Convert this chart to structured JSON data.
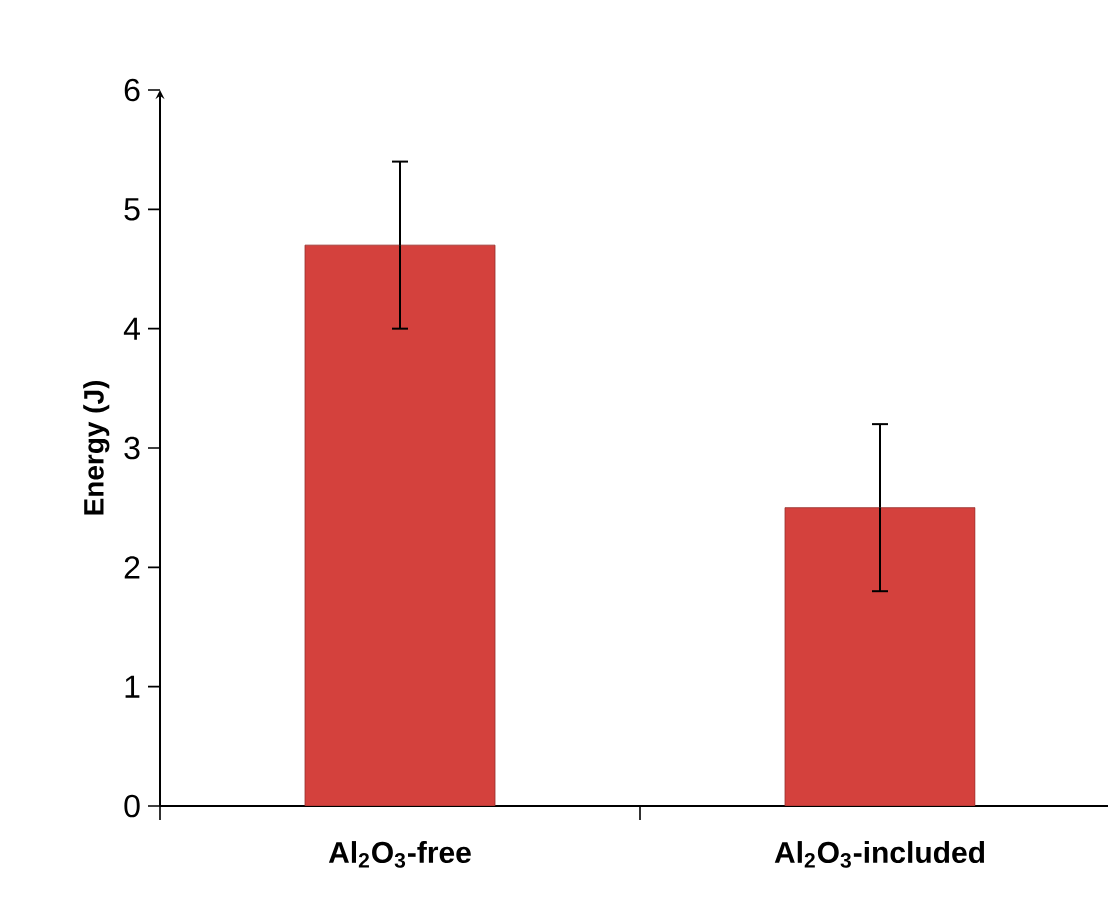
{
  "chart_data": {
    "type": "bar",
    "ylabel": "Energy (J)",
    "categories": [
      "Al$_{2}$O$_{3}$-free",
      "Al$_{2}$O$_{3}$-included"
    ],
    "values": [
      4.7,
      2.5
    ],
    "errors": [
      0.7,
      0.7
    ],
    "color": "#d4413d",
    "ylim": [
      0,
      6
    ],
    "yticks": [
      0,
      1,
      2,
      3,
      4,
      5,
      6
    ],
    "grid": false
  }
}
